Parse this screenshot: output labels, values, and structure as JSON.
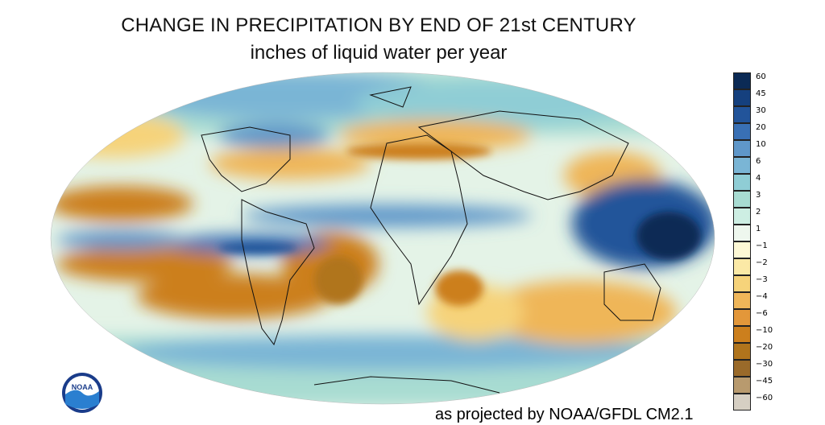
{
  "header": {
    "title": "CHANGE IN PRECIPITATION BY END OF 21st CENTURY",
    "subtitle": "inches of liquid water per year"
  },
  "legend": {
    "labels": [
      "60",
      "45",
      "30",
      "20",
      "10",
      "6",
      "4",
      "3",
      "2",
      "1",
      "−1",
      "−2",
      "−3",
      "−4",
      "−6",
      "−10",
      "−20",
      "−30",
      "−45",
      "−60"
    ],
    "colors": [
      "#0b2a55",
      "#15407e",
      "#22549a",
      "#3970b5",
      "#5f97c9",
      "#7ab5d5",
      "#8fcdd5",
      "#a8dcd2",
      "#cdeee3",
      "#eef7ee",
      "#fdf8d5",
      "#fbe9a6",
      "#f6d37a",
      "#efb659",
      "#e3973a",
      "#cc7f1d",
      "#b0741c",
      "#9a6a2a",
      "#b89a6e",
      "#d6cfc3"
    ]
  },
  "credit": {
    "text": "as projected by NOAA/GFDL CM2.1"
  },
  "logo": {
    "text": "NOAA"
  },
  "colors": {
    "ocean_base": "#e4f3e7",
    "wet": "#3970b5",
    "very_wet": "#0b2a55",
    "dry": "#cc7f1d",
    "moist": "#8fcdd5"
  }
}
